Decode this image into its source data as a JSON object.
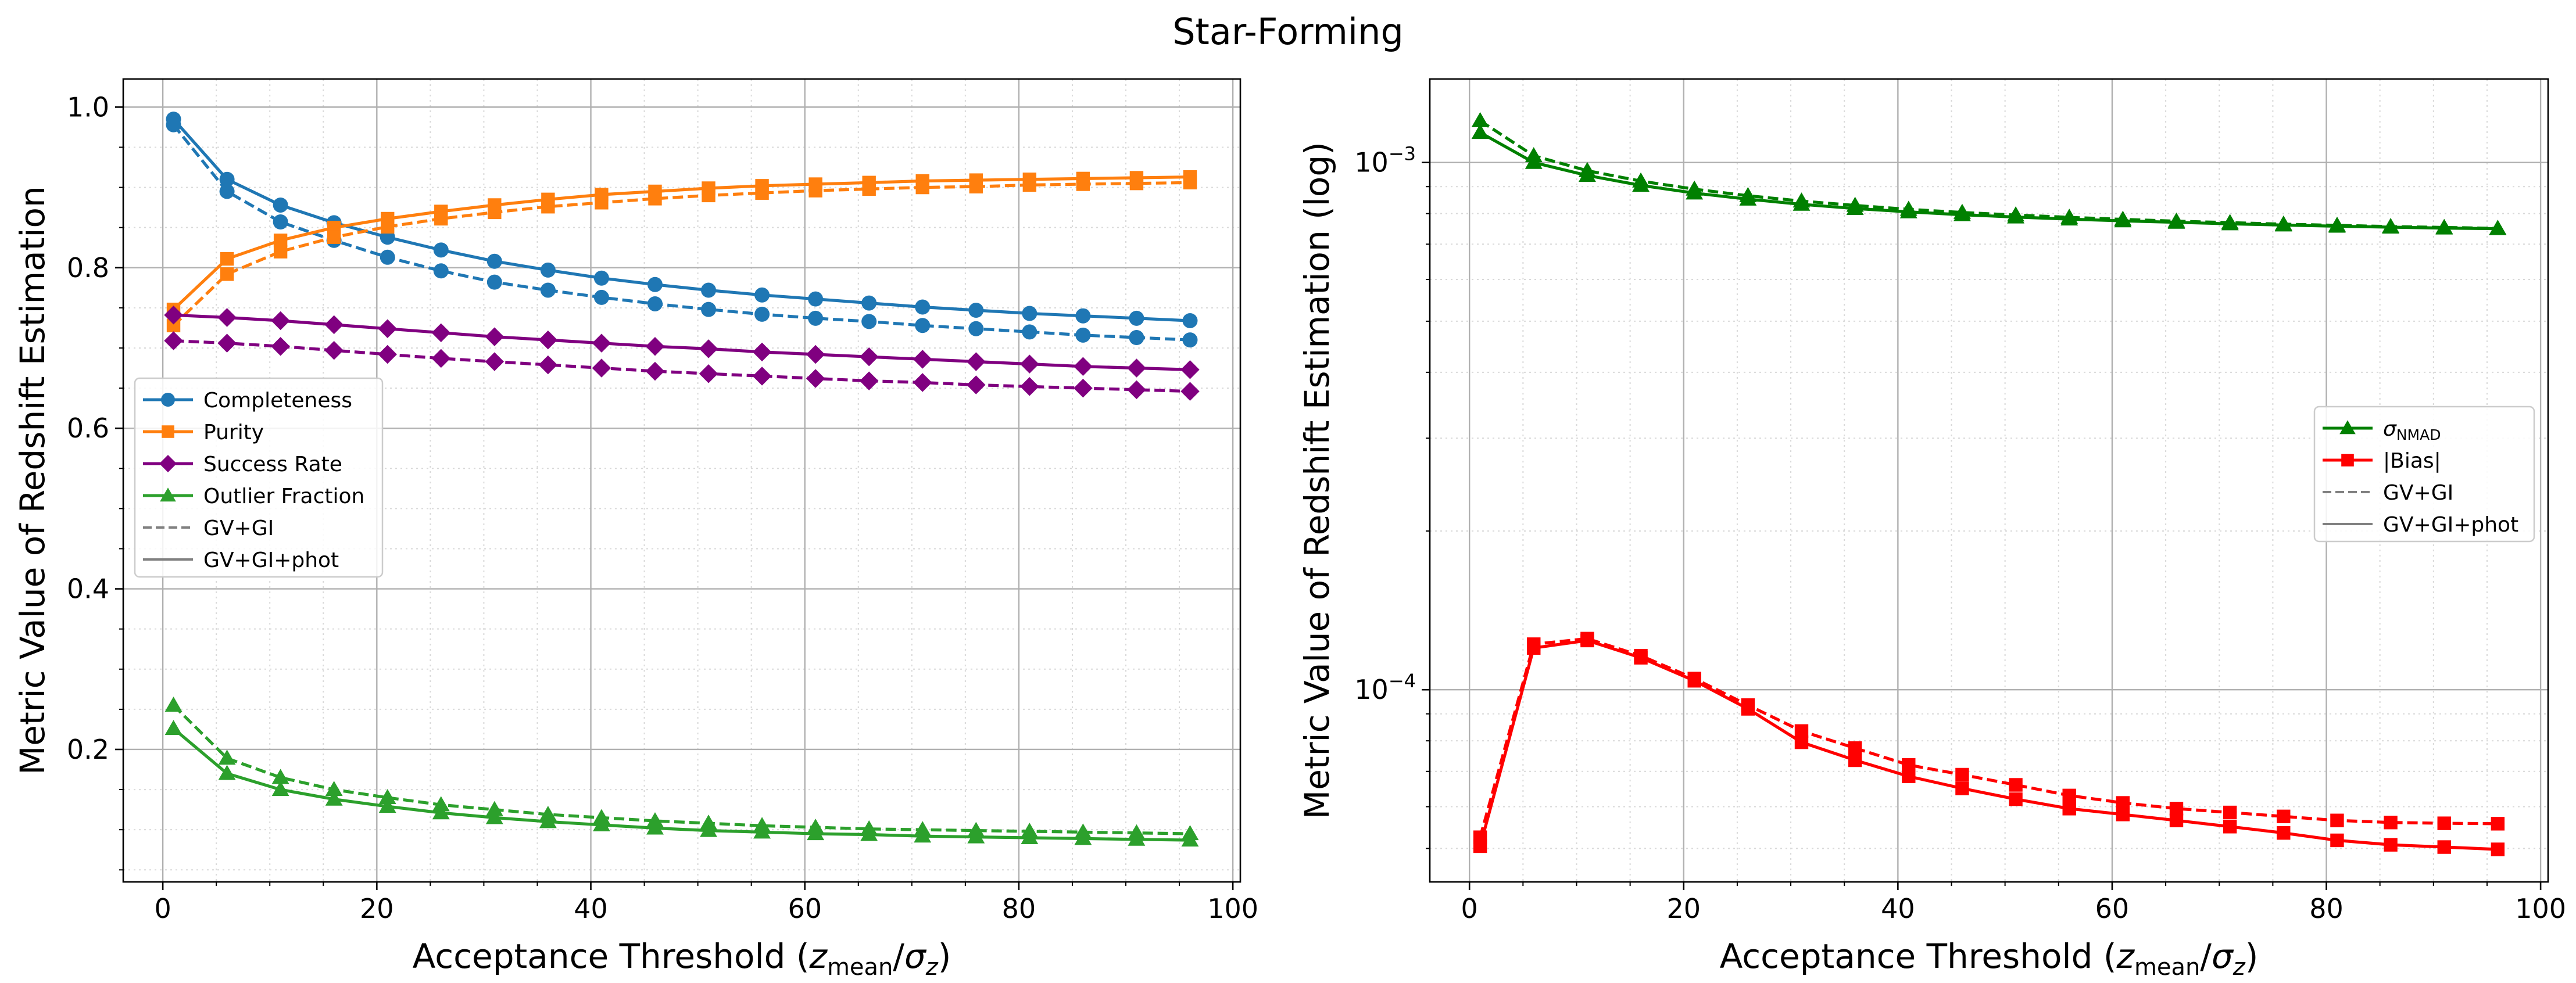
{
  "figure_title": "Star-Forming",
  "colors": {
    "completeness": "#1f77b4",
    "purity": "#ff7f0e",
    "success_rate": "#800080",
    "outlier_fraction": "#2ca02c",
    "sigma_nmad": "#008000",
    "bias": "#ff0000",
    "legend_style": "#808080"
  },
  "chart_data": [
    {
      "type": "line",
      "title": "",
      "xlabel": "Acceptance Threshold (z_mean/σ_z)",
      "ylabel": "Metric Value of Redshift Estimation",
      "xlim": [
        -3.7,
        100.7
      ],
      "ylim": [
        0.035,
        1.035
      ],
      "xticks": [
        0,
        20,
        40,
        60,
        80,
        100
      ],
      "xtick_labels": [
        "0",
        "20",
        "40",
        "60",
        "80",
        "100"
      ],
      "yticks": [
        0.2,
        0.4,
        0.6,
        0.8,
        1.0
      ],
      "ytick_labels": [
        "0.2",
        "0.4",
        "0.6",
        "0.8",
        "1.0"
      ],
      "grid": true,
      "legend_position": "center-left",
      "x": [
        1,
        6,
        11,
        16,
        21,
        26,
        31,
        36,
        41,
        46,
        51,
        56,
        61,
        66,
        71,
        76,
        81,
        86,
        91,
        96
      ],
      "legend": [
        {
          "label": "Completeness",
          "kind": "metric",
          "color_key": "completeness",
          "marker": "circle"
        },
        {
          "label": "Purity",
          "kind": "metric",
          "color_key": "purity",
          "marker": "square"
        },
        {
          "label": "Success Rate",
          "kind": "metric",
          "color_key": "success_rate",
          "marker": "diamond"
        },
        {
          "label": "Outlier Fraction",
          "kind": "metric",
          "color_key": "outlier_fraction",
          "marker": "triangle"
        },
        {
          "label": "GV+GI",
          "kind": "style",
          "color_key": "legend_style",
          "dash": true
        },
        {
          "label": "GV+GI+phot",
          "kind": "style",
          "color_key": "legend_style",
          "dash": false
        }
      ],
      "series": [
        {
          "name": "Completeness (GV+GI+phot)",
          "metric": "Completeness",
          "variant": "GV+GI+phot",
          "color_key": "completeness",
          "marker": "circle",
          "dash": false,
          "values": [
            0.985,
            0.91,
            0.878,
            0.856,
            0.838,
            0.822,
            0.808,
            0.797,
            0.787,
            0.779,
            0.772,
            0.766,
            0.761,
            0.756,
            0.751,
            0.747,
            0.743,
            0.74,
            0.737,
            0.734
          ]
        },
        {
          "name": "Completeness (GV+GI)",
          "metric": "Completeness",
          "variant": "GV+GI",
          "color_key": "completeness",
          "marker": "circle",
          "dash": true,
          "values": [
            0.978,
            0.895,
            0.857,
            0.834,
            0.813,
            0.796,
            0.782,
            0.772,
            0.763,
            0.755,
            0.748,
            0.742,
            0.737,
            0.733,
            0.728,
            0.724,
            0.72,
            0.716,
            0.713,
            0.71
          ]
        },
        {
          "name": "Purity (GV+GI+phot)",
          "metric": "Purity",
          "variant": "GV+GI+phot",
          "color_key": "purity",
          "marker": "square",
          "dash": false,
          "values": [
            0.748,
            0.811,
            0.834,
            0.85,
            0.861,
            0.87,
            0.878,
            0.885,
            0.891,
            0.895,
            0.899,
            0.902,
            0.904,
            0.906,
            0.908,
            0.909,
            0.91,
            0.911,
            0.912,
            0.913
          ]
        },
        {
          "name": "Purity (GV+GI)",
          "metric": "Purity",
          "variant": "GV+GI",
          "color_key": "purity",
          "marker": "square",
          "dash": true,
          "values": [
            0.728,
            0.792,
            0.82,
            0.838,
            0.851,
            0.861,
            0.869,
            0.876,
            0.881,
            0.886,
            0.89,
            0.893,
            0.896,
            0.898,
            0.9,
            0.901,
            0.903,
            0.904,
            0.905,
            0.906
          ]
        },
        {
          "name": "Success Rate (GV+GI+phot)",
          "metric": "Success Rate",
          "variant": "GV+GI+phot",
          "color_key": "success_rate",
          "marker": "diamond",
          "dash": false,
          "values": [
            0.741,
            0.738,
            0.734,
            0.729,
            0.724,
            0.719,
            0.714,
            0.71,
            0.706,
            0.702,
            0.699,
            0.695,
            0.692,
            0.689,
            0.686,
            0.683,
            0.68,
            0.677,
            0.675,
            0.673
          ]
        },
        {
          "name": "Success Rate (GV+GI)",
          "metric": "Success Rate",
          "variant": "GV+GI",
          "color_key": "success_rate",
          "marker": "diamond",
          "dash": true,
          "values": [
            0.709,
            0.706,
            0.702,
            0.697,
            0.692,
            0.687,
            0.683,
            0.679,
            0.675,
            0.671,
            0.668,
            0.665,
            0.662,
            0.659,
            0.657,
            0.654,
            0.652,
            0.65,
            0.648,
            0.646
          ]
        },
        {
          "name": "Outlier Fraction (GV+GI+phot)",
          "metric": "Outlier Fraction",
          "variant": "GV+GI+phot",
          "color_key": "outlier_fraction",
          "marker": "triangle",
          "dash": false,
          "values": [
            0.226,
            0.17,
            0.15,
            0.138,
            0.129,
            0.121,
            0.115,
            0.11,
            0.106,
            0.102,
            0.099,
            0.097,
            0.095,
            0.094,
            0.092,
            0.091,
            0.09,
            0.089,
            0.088,
            0.087
          ]
        },
        {
          "name": "Outlier Fraction (GV+GI)",
          "metric": "Outlier Fraction",
          "variant": "GV+GI",
          "color_key": "outlier_fraction",
          "marker": "triangle",
          "dash": true,
          "values": [
            0.255,
            0.189,
            0.165,
            0.15,
            0.14,
            0.131,
            0.125,
            0.119,
            0.115,
            0.111,
            0.108,
            0.105,
            0.103,
            0.101,
            0.1,
            0.099,
            0.098,
            0.097,
            0.096,
            0.095
          ]
        }
      ]
    },
    {
      "type": "line",
      "title": "",
      "xlabel": "Acceptance Threshold (z_mean/σ_z)",
      "ylabel": "Metric Value of Redshift Estimation (log)",
      "yscale": "log",
      "xlim": [
        -3.7,
        100.7
      ],
      "ylim": [
        4.32e-05,
        0.00144
      ],
      "xticks": [
        0,
        20,
        40,
        60,
        80,
        100
      ],
      "xtick_labels": [
        "0",
        "20",
        "40",
        "60",
        "80",
        "100"
      ],
      "yticks": [
        0.0001,
        0.001
      ],
      "ytick_labels": [
        "10−4",
        "10−3"
      ],
      "grid": true,
      "legend_position": "center-right",
      "x": [
        1,
        6,
        11,
        16,
        21,
        26,
        31,
        36,
        41,
        46,
        51,
        56,
        61,
        66,
        71,
        76,
        81,
        86,
        91,
        96
      ],
      "legend": [
        {
          "label": "σNMAD",
          "kind": "metric",
          "color_key": "sigma_nmad",
          "marker": "triangle"
        },
        {
          "label": "|Bias|",
          "kind": "metric",
          "color_key": "bias",
          "marker": "square"
        },
        {
          "label": "GV+GI",
          "kind": "style",
          "color_key": "legend_style",
          "dash": true
        },
        {
          "label": "GV+GI+phot",
          "kind": "style",
          "color_key": "legend_style",
          "dash": false
        }
      ],
      "series": [
        {
          "name": "σNMAD (GV+GI+phot)",
          "metric": "σNMAD",
          "variant": "GV+GI+phot",
          "color_key": "sigma_nmad",
          "marker": "triangle",
          "dash": false,
          "values": [
            0.00114,
            0.001,
            0.000945,
            0.000905,
            0.000875,
            0.000852,
            0.000833,
            0.000818,
            0.000806,
            0.000796,
            0.000788,
            0.000781,
            0.000775,
            0.00077,
            0.000765,
            0.000761,
            0.000757,
            0.000754,
            0.000751,
            0.000749
          ]
        },
        {
          "name": "σNMAD (GV+GI)",
          "metric": "σNMAD",
          "variant": "GV+GI",
          "color_key": "sigma_nmad",
          "marker": "triangle",
          "dash": true,
          "values": [
            0.0012,
            0.00103,
            0.000965,
            0.000922,
            0.00089,
            0.000865,
            0.000845,
            0.000829,
            0.000815,
            0.000804,
            0.000795,
            0.000787,
            0.00078,
            0.000774,
            0.000769,
            0.000764,
            0.00076,
            0.000756,
            0.000753,
            0.00075
          ]
        },
        {
          "name": "|Bias| (GV+GI+phot)",
          "metric": "|Bias|",
          "variant": "GV+GI+phot",
          "color_key": "bias",
          "marker": "square",
          "dash": false,
          "values": [
            5.05e-05,
            0.00012,
            0.000124,
            0.000115,
            0.000104,
            9.2e-05,
            7.95e-05,
            7.35e-05,
            6.85e-05,
            6.5e-05,
            6.2e-05,
            5.95e-05,
            5.8e-05,
            5.65e-05,
            5.5e-05,
            5.35e-05,
            5.18e-05,
            5.08e-05,
            5.03e-05,
            4.98e-05
          ]
        },
        {
          "name": "|Bias| (GV+GI)",
          "metric": "|Bias|",
          "variant": "GV+GI",
          "color_key": "bias",
          "marker": "square",
          "dash": true,
          "values": [
            5.25e-05,
            0.000122,
            0.000125,
            0.000116,
            0.000105,
            9.35e-05,
            8.35e-05,
            7.75e-05,
            7.2e-05,
            6.9e-05,
            6.6e-05,
            6.3e-05,
            6.1e-05,
            5.95e-05,
            5.85e-05,
            5.75e-05,
            5.65e-05,
            5.6e-05,
            5.58e-05,
            5.57e-05
          ]
        }
      ]
    }
  ]
}
